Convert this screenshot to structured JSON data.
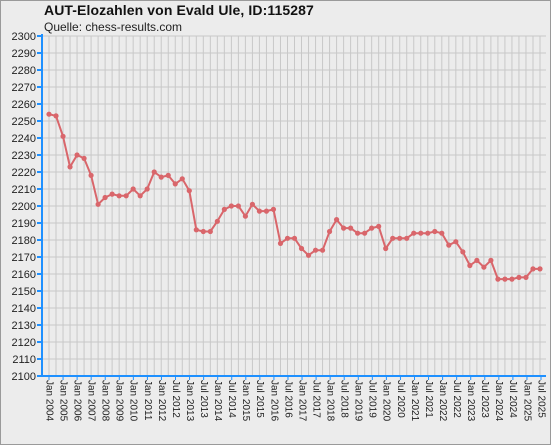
{
  "chart_data": {
    "type": "line",
    "title": "AUT-Elozahlen von Evald Ule, ID:115287",
    "subtitle": "Quelle: chess-results.com",
    "xlabel": "",
    "ylabel": "",
    "ylim": [
      2100,
      2300
    ],
    "ytick_step": 10,
    "grid": true,
    "legend": "none",
    "series_color": "#d9666b",
    "x_tick_labels": [
      "Jan 2004",
      "Jan 2005",
      "Jan 2006",
      "Jan 2007",
      "Jan 2008",
      "Jan 2009",
      "Jan 2010",
      "Jan 2011",
      "Jan 2012",
      "Jul 2012",
      "Jan 2013",
      "Jul 2013",
      "Jan 2014",
      "Jul 2014",
      "Jan 2015",
      "Jul 2015",
      "Jan 2016",
      "Jul 2016",
      "Jan 2017",
      "Jul 2017",
      "Jan 2018",
      "Jul 2018",
      "Jan 2019",
      "Jul 2019",
      "Jan 2020",
      "Jul 2020",
      "Jan 2021",
      "Jul 2021",
      "Jan 2022",
      "Jul 2022",
      "Jan 2023",
      "Jul 2023",
      "Jan 2024",
      "Jul 2024",
      "Jan 2025",
      "Jul 2025"
    ],
    "series": [
      {
        "values": [
          2254,
          2253,
          2241,
          2223,
          2230,
          2228,
          2218,
          2201,
          2205,
          2207,
          2206,
          2206,
          2210,
          2206,
          2210,
          2220,
          2217,
          2218,
          2213,
          2216,
          2209,
          2186,
          2185,
          2185,
          2191,
          2198,
          2200,
          2200,
          2194,
          2201,
          2197,
          2197,
          2198,
          2178,
          2181,
          2181,
          2175,
          2171,
          2174,
          2174,
          2185,
          2192,
          2187,
          2187,
          2184,
          2184,
          2187,
          2188,
          2175,
          2181,
          2181,
          2181,
          2184,
          2184,
          2184,
          2185,
          2184,
          2177,
          2179,
          2173,
          2165,
          2168,
          2164,
          2168,
          2157,
          2157,
          2157,
          2158,
          2158,
          2163,
          2163
        ]
      }
    ]
  }
}
